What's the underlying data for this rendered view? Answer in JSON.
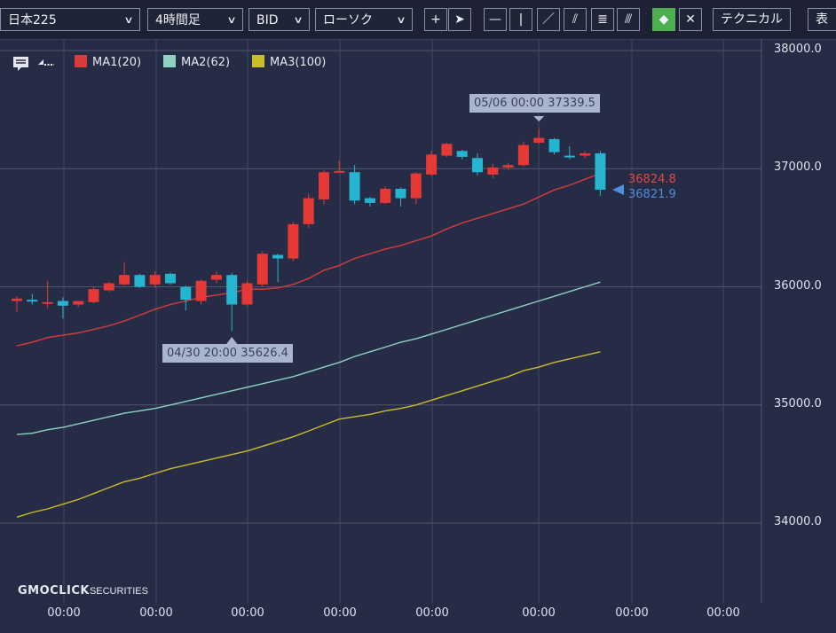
{
  "toolbar": {
    "symbol": "日本225",
    "timeframe": "4時間足",
    "price_type": "BID",
    "chart_style": "ローソク",
    "technical_label": "テクニカル",
    "display_label": "表",
    "tools": [
      {
        "name": "crosshair-icon",
        "glyph": "+"
      },
      {
        "name": "pointer-icon",
        "glyph": "➤"
      },
      {
        "name": "horizontal-line-icon",
        "glyph": "—"
      },
      {
        "name": "vertical-line-icon",
        "glyph": "|"
      },
      {
        "name": "trend-line-icon",
        "glyph": "／"
      },
      {
        "name": "channel-line-icon",
        "glyph": "⫽"
      },
      {
        "name": "fibonacci-retracement-icon",
        "glyph": "≣"
      },
      {
        "name": "fibonacci-fan-icon",
        "glyph": "⫻"
      },
      {
        "name": "eraser-icon",
        "glyph": "◆"
      },
      {
        "name": "erase-all-icon",
        "glyph": "✕"
      }
    ]
  },
  "legend": {
    "ma1": {
      "label": "MA1(20)",
      "color": "#d93b3b"
    },
    "ma2": {
      "label": "MA2(62)",
      "color": "#8ed1c1"
    },
    "ma3": {
      "label": "MA3(100)",
      "color": "#c9bd29"
    }
  },
  "y_axis_labels": [
    "38000.0",
    "37000.0",
    "36000.0",
    "35000.0",
    "34000.0"
  ],
  "x_axis_labels": [
    "00:00",
    "00:00",
    "00:00",
    "00:00",
    "00:00",
    "00:00",
    "00:00",
    "00:00"
  ],
  "tooltips": {
    "high": "05/06 00:00 37339.5",
    "low": "04/30 20:00 35626.4"
  },
  "price_tags": {
    "ask": {
      "text": "36824.8",
      "color": "#e04848"
    },
    "bid": {
      "text": "36821.9",
      "color": "#4a8fe0"
    }
  },
  "brand": {
    "name": "GMOCLICK",
    "suffix": "SECURITIES"
  },
  "chart_data": {
    "type": "candlestick",
    "ylim": [
      33800,
      38100
    ],
    "y_ticks": [
      34000,
      35000,
      36000,
      37000,
      38000
    ],
    "up_color": "#e53935",
    "down_color": "#26b5d0",
    "candles": [
      {
        "o": 35880,
        "h": 35920,
        "l": 35790,
        "c": 35900
      },
      {
        "o": 35890,
        "h": 35940,
        "l": 35850,
        "c": 35880
      },
      {
        "o": 35870,
        "h": 36050,
        "l": 35820,
        "c": 35870
      },
      {
        "o": 35880,
        "h": 35910,
        "l": 35730,
        "c": 35840
      },
      {
        "o": 35850,
        "h": 35880,
        "l": 35830,
        "c": 35880
      },
      {
        "o": 35870,
        "h": 36000,
        "l": 35860,
        "c": 35980
      },
      {
        "o": 35970,
        "h": 36040,
        "l": 35960,
        "c": 36030
      },
      {
        "o": 36020,
        "h": 36210,
        "l": 36010,
        "c": 36100
      },
      {
        "o": 36100,
        "h": 36110,
        "l": 35990,
        "c": 36000
      },
      {
        "o": 36020,
        "h": 36130,
        "l": 35990,
        "c": 36100
      },
      {
        "o": 36110,
        "h": 36120,
        "l": 36020,
        "c": 36030
      },
      {
        "o": 36000,
        "h": 36010,
        "l": 35800,
        "c": 35890
      },
      {
        "o": 35880,
        "h": 36060,
        "l": 35850,
        "c": 36050
      },
      {
        "o": 36060,
        "h": 36130,
        "l": 36030,
        "c": 36100
      },
      {
        "o": 36100,
        "h": 36120,
        "l": 35626.4,
        "c": 35850
      },
      {
        "o": 35850,
        "h": 36050,
        "l": 35840,
        "c": 36030
      },
      {
        "o": 36020,
        "h": 36300,
        "l": 36000,
        "c": 36280
      },
      {
        "o": 36270,
        "h": 36280,
        "l": 36040,
        "c": 36240
      },
      {
        "o": 36240,
        "h": 36550,
        "l": 36220,
        "c": 36530
      },
      {
        "o": 36530,
        "h": 36790,
        "l": 36500,
        "c": 36750
      },
      {
        "o": 36740,
        "h": 36990,
        "l": 36700,
        "c": 36970
      },
      {
        "o": 36980,
        "h": 37070,
        "l": 36970,
        "c": 36980
      },
      {
        "o": 36970,
        "h": 37030,
        "l": 36700,
        "c": 36730
      },
      {
        "o": 36750,
        "h": 36760,
        "l": 36680,
        "c": 36710
      },
      {
        "o": 36710,
        "h": 36850,
        "l": 36700,
        "c": 36830
      },
      {
        "o": 36830,
        "h": 36840,
        "l": 36680,
        "c": 36750
      },
      {
        "o": 36750,
        "h": 36970,
        "l": 36700,
        "c": 36960
      },
      {
        "o": 36950,
        "h": 37150,
        "l": 36940,
        "c": 37120
      },
      {
        "o": 37110,
        "h": 37220,
        "l": 37100,
        "c": 37210
      },
      {
        "o": 37150,
        "h": 37160,
        "l": 37080,
        "c": 37100
      },
      {
        "o": 37090,
        "h": 37130,
        "l": 36940,
        "c": 36970
      },
      {
        "o": 36950,
        "h": 37040,
        "l": 36920,
        "c": 37010
      },
      {
        "o": 37010,
        "h": 37050,
        "l": 36990,
        "c": 37030
      },
      {
        "o": 37030,
        "h": 37230,
        "l": 37020,
        "c": 37200
      },
      {
        "o": 37220,
        "h": 37339.5,
        "l": 37210,
        "c": 37260
      },
      {
        "o": 37250,
        "h": 37260,
        "l": 37120,
        "c": 37140
      },
      {
        "o": 37110,
        "h": 37190,
        "l": 37080,
        "c": 37100
      },
      {
        "o": 37110,
        "h": 37150,
        "l": 37090,
        "c": 37130
      },
      {
        "o": 37130,
        "h": 37150,
        "l": 36770,
        "c": 36822
      }
    ],
    "ma1": [
      35500,
      35530,
      35570,
      35590,
      35610,
      35640,
      35670,
      35710,
      35760,
      35810,
      35850,
      35880,
      35910,
      35930,
      35950,
      35980,
      35980,
      35990,
      36020,
      36070,
      36140,
      36180,
      36240,
      36280,
      36320,
      36350,
      36390,
      36430,
      36490,
      36540,
      36580,
      36620,
      36660,
      36700,
      36760,
      36820,
      36860,
      36910,
      36960
    ],
    "ma2": [
      34750,
      34760,
      34790,
      34810,
      34840,
      34870,
      34900,
      34930,
      34950,
      34970,
      35000,
      35030,
      35060,
      35090,
      35120,
      35150,
      35180,
      35210,
      35240,
      35280,
      35320,
      35360,
      35410,
      35450,
      35490,
      35530,
      35560,
      35600,
      35640,
      35680,
      35720,
      35760,
      35800,
      35840,
      35880,
      35920,
      35960,
      36000,
      36040
    ],
    "ma3": [
      34050,
      34090,
      34120,
      34160,
      34200,
      34250,
      34300,
      34350,
      34380,
      34420,
      34460,
      34490,
      34520,
      34550,
      34580,
      34610,
      34650,
      34690,
      34730,
      34780,
      34830,
      34880,
      34900,
      34920,
      34950,
      34970,
      35000,
      35040,
      35080,
      35120,
      35160,
      35200,
      35240,
      35290,
      35320,
      35360,
      35390,
      35420,
      35450
    ]
  }
}
